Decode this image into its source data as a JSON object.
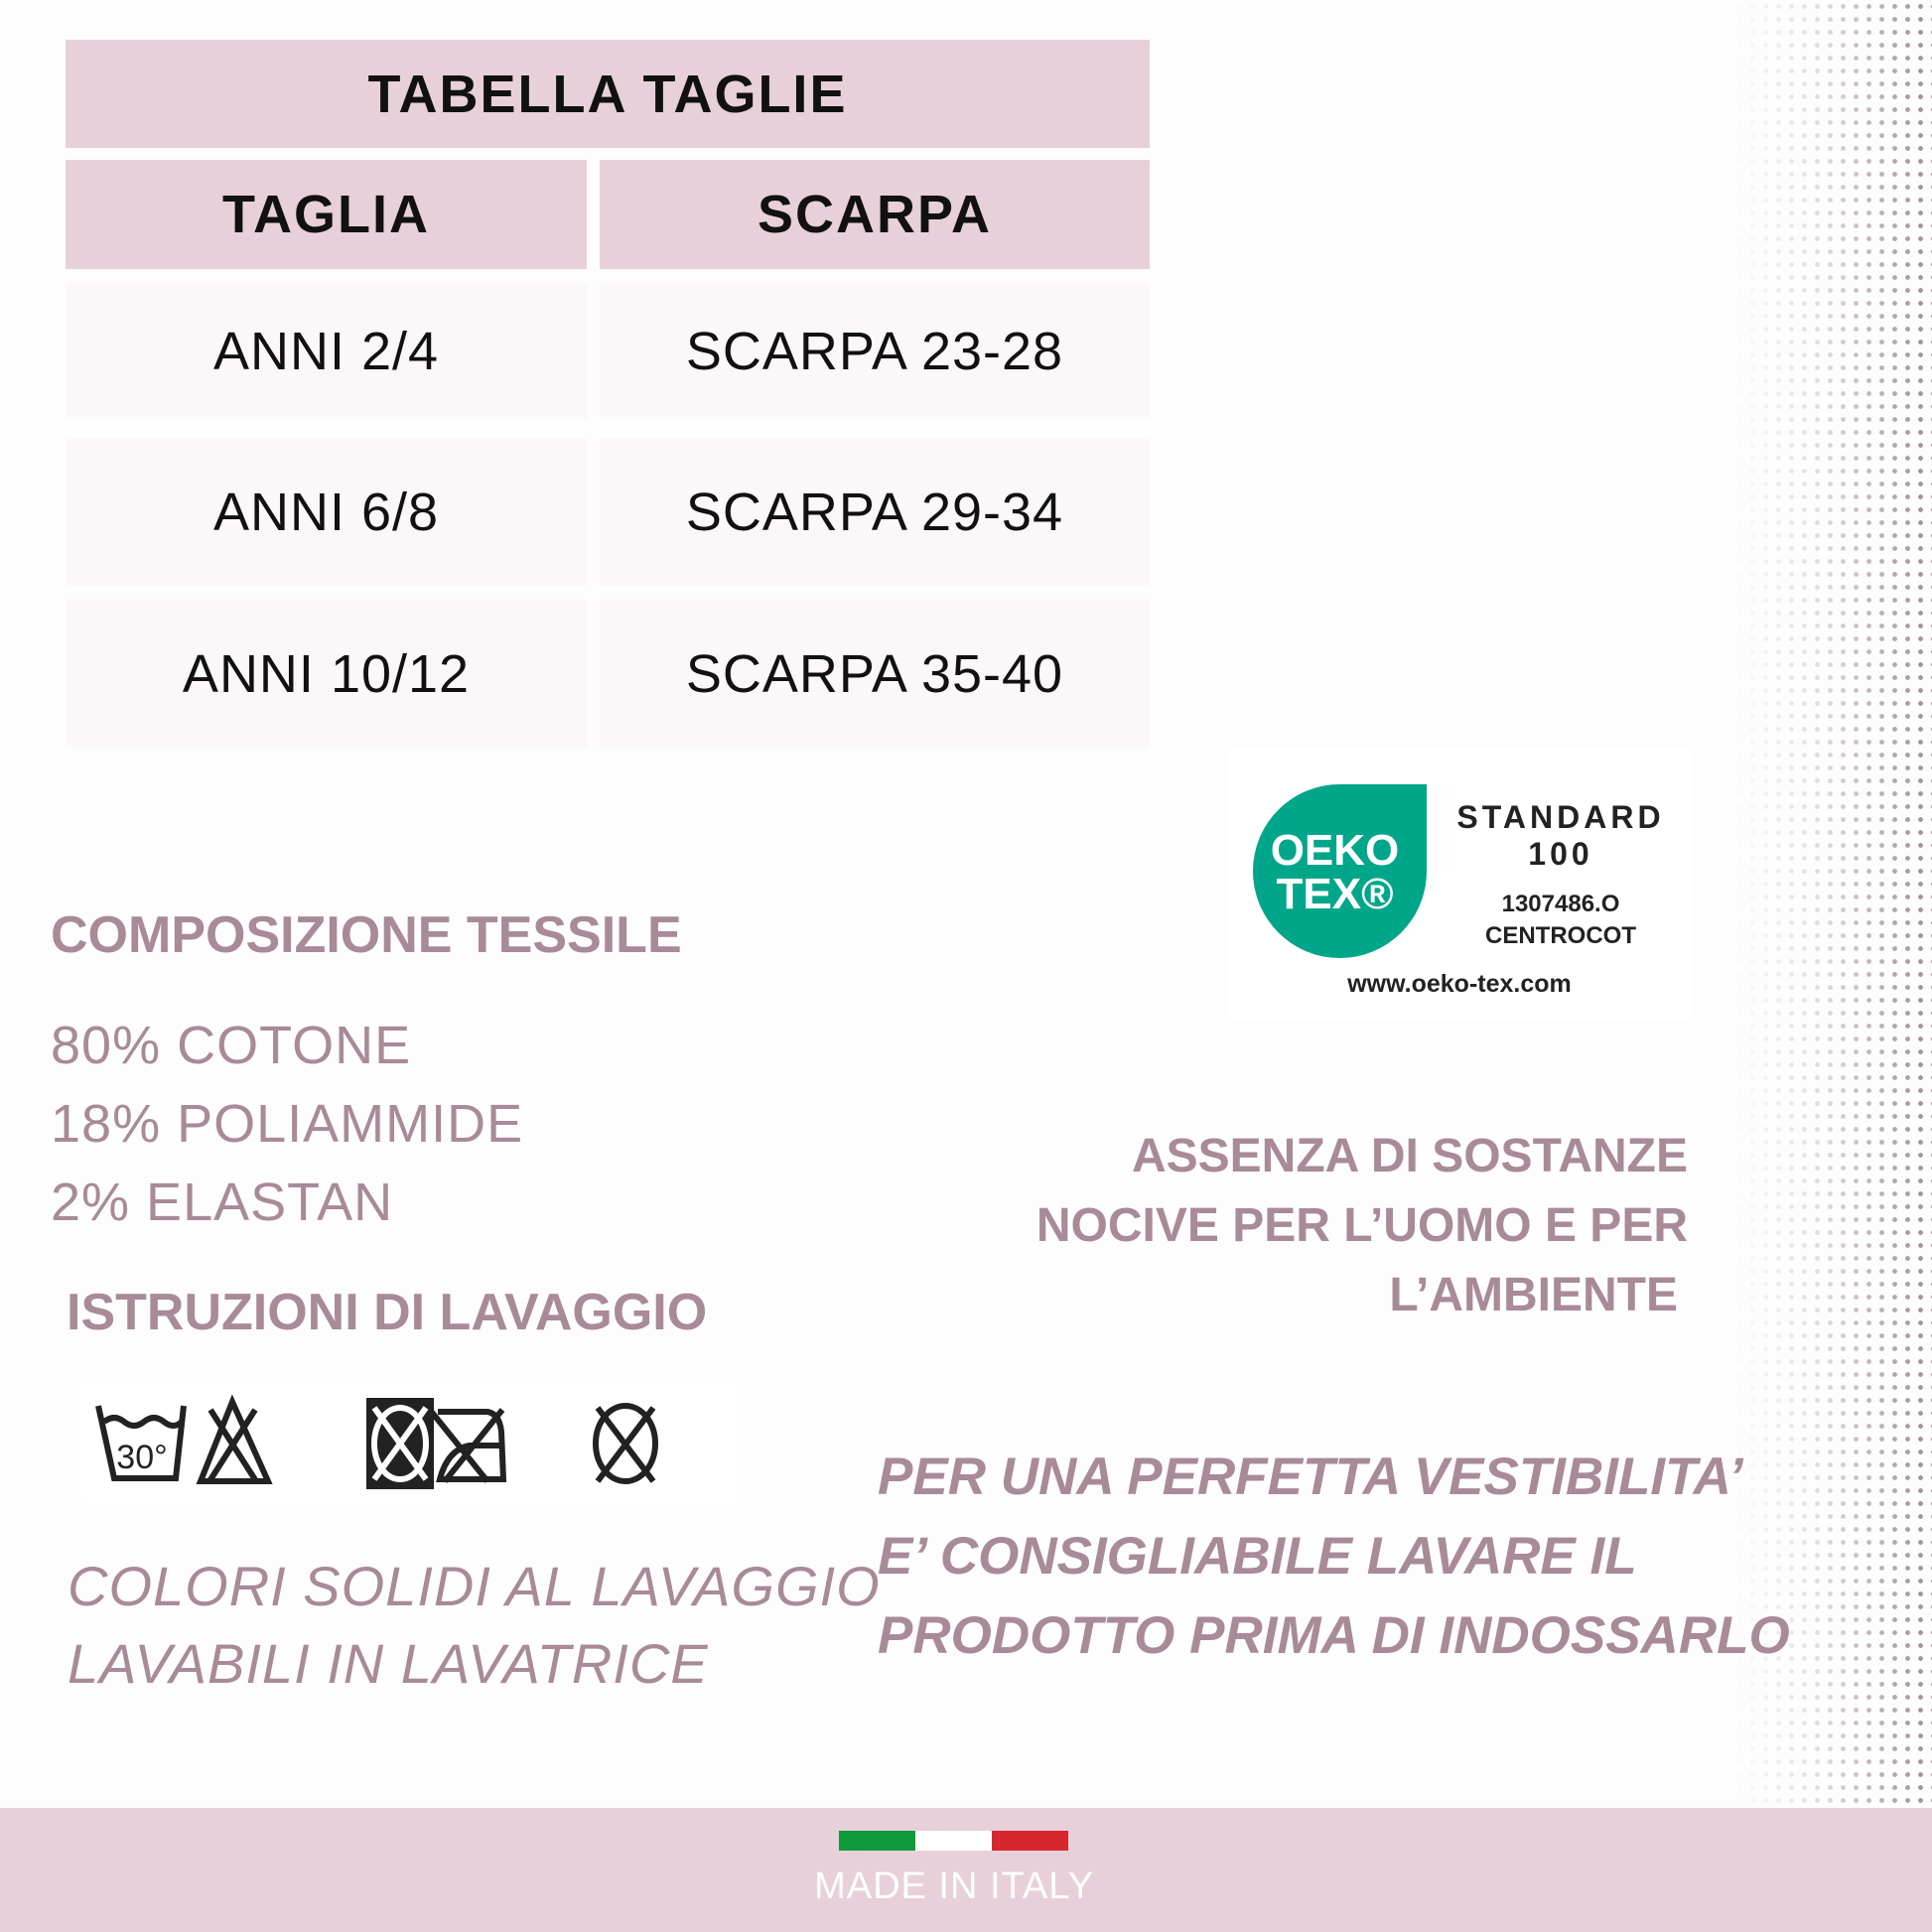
{
  "size_table": {
    "title": "TABELLA TAGLIE",
    "headers": [
      "TAGLIA",
      "SCARPA"
    ],
    "rows": [
      [
        "ANNI 2/4",
        "SCARPA 23-28"
      ],
      [
        "ANNI 6/8",
        "SCARPA 29-34"
      ],
      [
        "ANNI 10/12",
        "SCARPA 35-40"
      ]
    ]
  },
  "composition": {
    "title": "COMPOSIZIONE TESSILE",
    "items": [
      "80% COTONE",
      "18% POLIAMMIDE",
      "2% ELASTAN"
    ]
  },
  "washing": {
    "title": "ISTRUZIONI DI LAVAGGIO",
    "wash_temp": "30°",
    "icons": [
      "wash-30-icon",
      "no-bleach-icon",
      "no-tumble-dry-icon",
      "no-iron-icon",
      "no-dry-clean-icon"
    ],
    "notes": [
      "COLORI SOLIDI AL LAVAGGIO",
      "LAVABILI IN LAVATRICE"
    ]
  },
  "oeko_tex": {
    "logo_line1": "OEKO",
    "logo_line2": "TEX®",
    "standard": "STANDARD",
    "number": "100",
    "code": "1307486.O",
    "institute": "CENTROCOT",
    "url": "www.oeko-tex.com",
    "color": "#00a68a"
  },
  "harmless": [
    "ASSENZA DI SOSTANZE",
    "NOCIVE PER L’UOMO E PER",
    "L’AMBIENTE"
  ],
  "fit_note": [
    "PER UNA PERFETTA VESTIBILITA’",
    "E’ CONSIGLIABILE LAVARE IL",
    "PRODOTTO PRIMA DI INDOSSARLO"
  ],
  "footer": {
    "label": "MADE IN ITALY",
    "flag_colors": [
      "#119a3c",
      "#ffffff",
      "#d8262e"
    ]
  },
  "colors": {
    "pink": "#e8d0da",
    "mauve": "#a88a98"
  }
}
